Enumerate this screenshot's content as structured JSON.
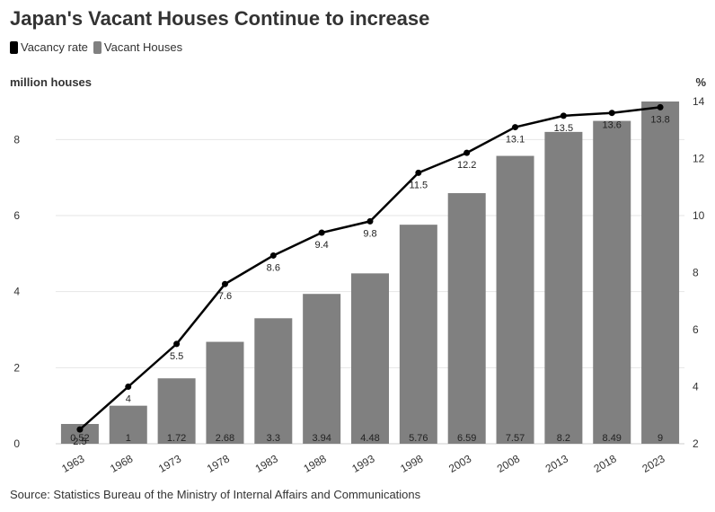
{
  "title": "Japan's Vacant Houses Continue to increase",
  "source": "Source: Statistics Bureau of the Ministry of Internal Affairs and Communications",
  "colors": {
    "bar": "#808080",
    "line": "#000000",
    "grid": "#e6e6e6",
    "text": "#333333"
  },
  "chart_data": {
    "type": "bar",
    "categories": [
      "1963",
      "1968",
      "1973",
      "1978",
      "1983",
      "1988",
      "1993",
      "1998",
      "2003",
      "2008",
      "2013",
      "2018",
      "2023"
    ],
    "series": [
      {
        "name": "Vacant Houses",
        "type": "bar",
        "axis": "left",
        "values": [
          0.52,
          1,
          1.72,
          2.68,
          3.3,
          3.94,
          4.48,
          5.76,
          6.59,
          7.57,
          8.2,
          8.49,
          9
        ]
      },
      {
        "name": "Vacancy rate",
        "type": "line",
        "axis": "right",
        "values": [
          2.5,
          4,
          5.5,
          7.6,
          8.6,
          9.4,
          9.8,
          11.5,
          12.2,
          13.1,
          13.5,
          13.6,
          13.8
        ]
      }
    ],
    "ylabel_left": "million houses",
    "ylabel_right": "%",
    "ylim_left": [
      0,
      9
    ],
    "ylim_right": [
      2,
      14
    ],
    "yticks_left": [
      0,
      2,
      4,
      6,
      8
    ],
    "yticks_right": [
      2,
      4,
      6,
      8,
      10,
      12,
      14
    ],
    "grid": true,
    "legend_position": "top-left"
  }
}
